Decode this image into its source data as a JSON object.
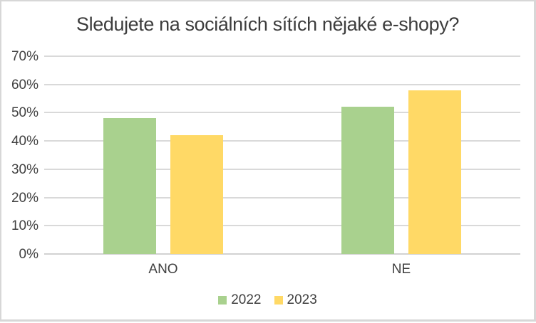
{
  "chart_data": {
    "type": "bar",
    "title": "Sledujete na sociálních sítích nějaké e-shopy?",
    "categories": [
      "ANO",
      "NE"
    ],
    "series": [
      {
        "name": "2022",
        "color": "#A9D18E",
        "values": [
          48,
          52
        ]
      },
      {
        "name": "2023",
        "color": "#FFD966",
        "values": [
          42,
          58
        ]
      }
    ],
    "value_unit": "percent",
    "xlabel": "",
    "ylabel": "",
    "ylim": [
      0,
      70
    ],
    "yticks": [
      0,
      10,
      20,
      30,
      40,
      50,
      60,
      70
    ],
    "ytick_labels": [
      "0%",
      "10%",
      "20%",
      "30%",
      "40%",
      "50%",
      "60%",
      "70%"
    ],
    "grid": true,
    "legend_position": "bottom",
    "colors": {
      "gridline": "#D9D9D9",
      "axis_line": "#D2D2D2",
      "text": "#404040",
      "background": "#FFFFFF",
      "frame_border": "#D7D7D7"
    }
  }
}
